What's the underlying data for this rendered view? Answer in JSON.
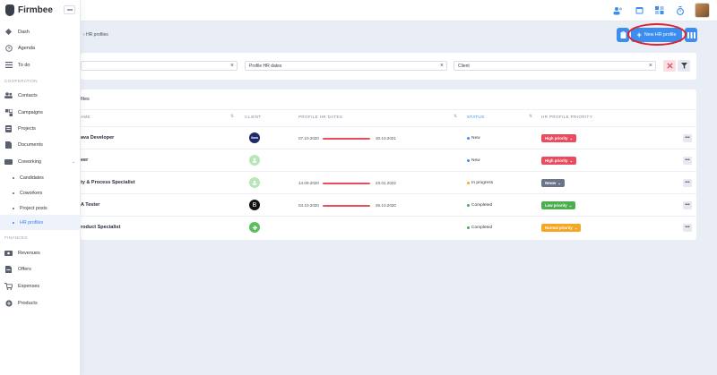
{
  "app": {
    "name": "Firmbee"
  },
  "colors": {
    "accent": "#3b8df0",
    "danger": "#e94b5f",
    "success": "#4cae4f",
    "warning": "#f5a623",
    "neutral": "#6b7488",
    "annotation": "#e0202b"
  },
  "sidebar": {
    "items": [
      {
        "label": "Dash",
        "icon": "dashboard-icon"
      },
      {
        "label": "Agenda",
        "icon": "clock-icon"
      },
      {
        "label": "To do",
        "icon": "list-icon"
      }
    ],
    "section_cooperation": "COOPERATION",
    "coop_items": [
      {
        "label": "Contacts",
        "icon": "contacts-icon"
      },
      {
        "label": "Campaigns",
        "icon": "campaigns-icon"
      },
      {
        "label": "Projects",
        "icon": "projects-icon"
      },
      {
        "label": "Documents",
        "icon": "documents-icon"
      },
      {
        "label": "Coworking",
        "icon": "coworking-icon"
      }
    ],
    "coworking_sub": [
      {
        "label": "Candidates"
      },
      {
        "label": "Coworkers"
      },
      {
        "label": "Project posts"
      },
      {
        "label": "HR profiles"
      }
    ],
    "section_finances": "FINANCES",
    "finance_items": [
      {
        "label": "Revenues",
        "icon": "revenues-icon"
      },
      {
        "label": "Offers",
        "icon": "offers-icon"
      },
      {
        "label": "Expenses",
        "icon": "expenses-icon"
      },
      {
        "label": "Products",
        "icon": "products-icon"
      }
    ]
  },
  "breadcrumb": {
    "current": "HR profiles",
    "separator": "›"
  },
  "actions": {
    "new_label": "New HR profile"
  },
  "filters": {
    "dates_placeholder": "Profile HR dates",
    "client_placeholder": "Client"
  },
  "table": {
    "title": "files",
    "columns": {
      "name": "AME",
      "client": "CLIENT",
      "dates": "PROFILE HR DATES",
      "status": "STATUS",
      "priority": "HR PROFILE PRIORITY"
    },
    "rows": [
      {
        "name": "ava Developer",
        "client_logo": "ilana",
        "start": "07.10.2020",
        "end": "30.10.2021",
        "status": "New",
        "priority": "High priority"
      },
      {
        "name": "eer",
        "client_logo": "",
        "start": "",
        "end": "",
        "status": "New",
        "priority": "High priority"
      },
      {
        "name": "ty & Process Specialist",
        "client_logo": "",
        "start": "14.09.2020",
        "end": "23.01.2022",
        "status": "In progress",
        "priority": "Neww"
      },
      {
        "name": "A Tester",
        "client_logo": "B",
        "start": "04.10.2020",
        "end": "26.10.2020",
        "status": "Completed",
        "priority": "Low priority"
      },
      {
        "name": "roduct Specialist",
        "client_logo": "",
        "start": "",
        "end": "",
        "status": "Completed",
        "priority": "Normal priority"
      }
    ]
  }
}
